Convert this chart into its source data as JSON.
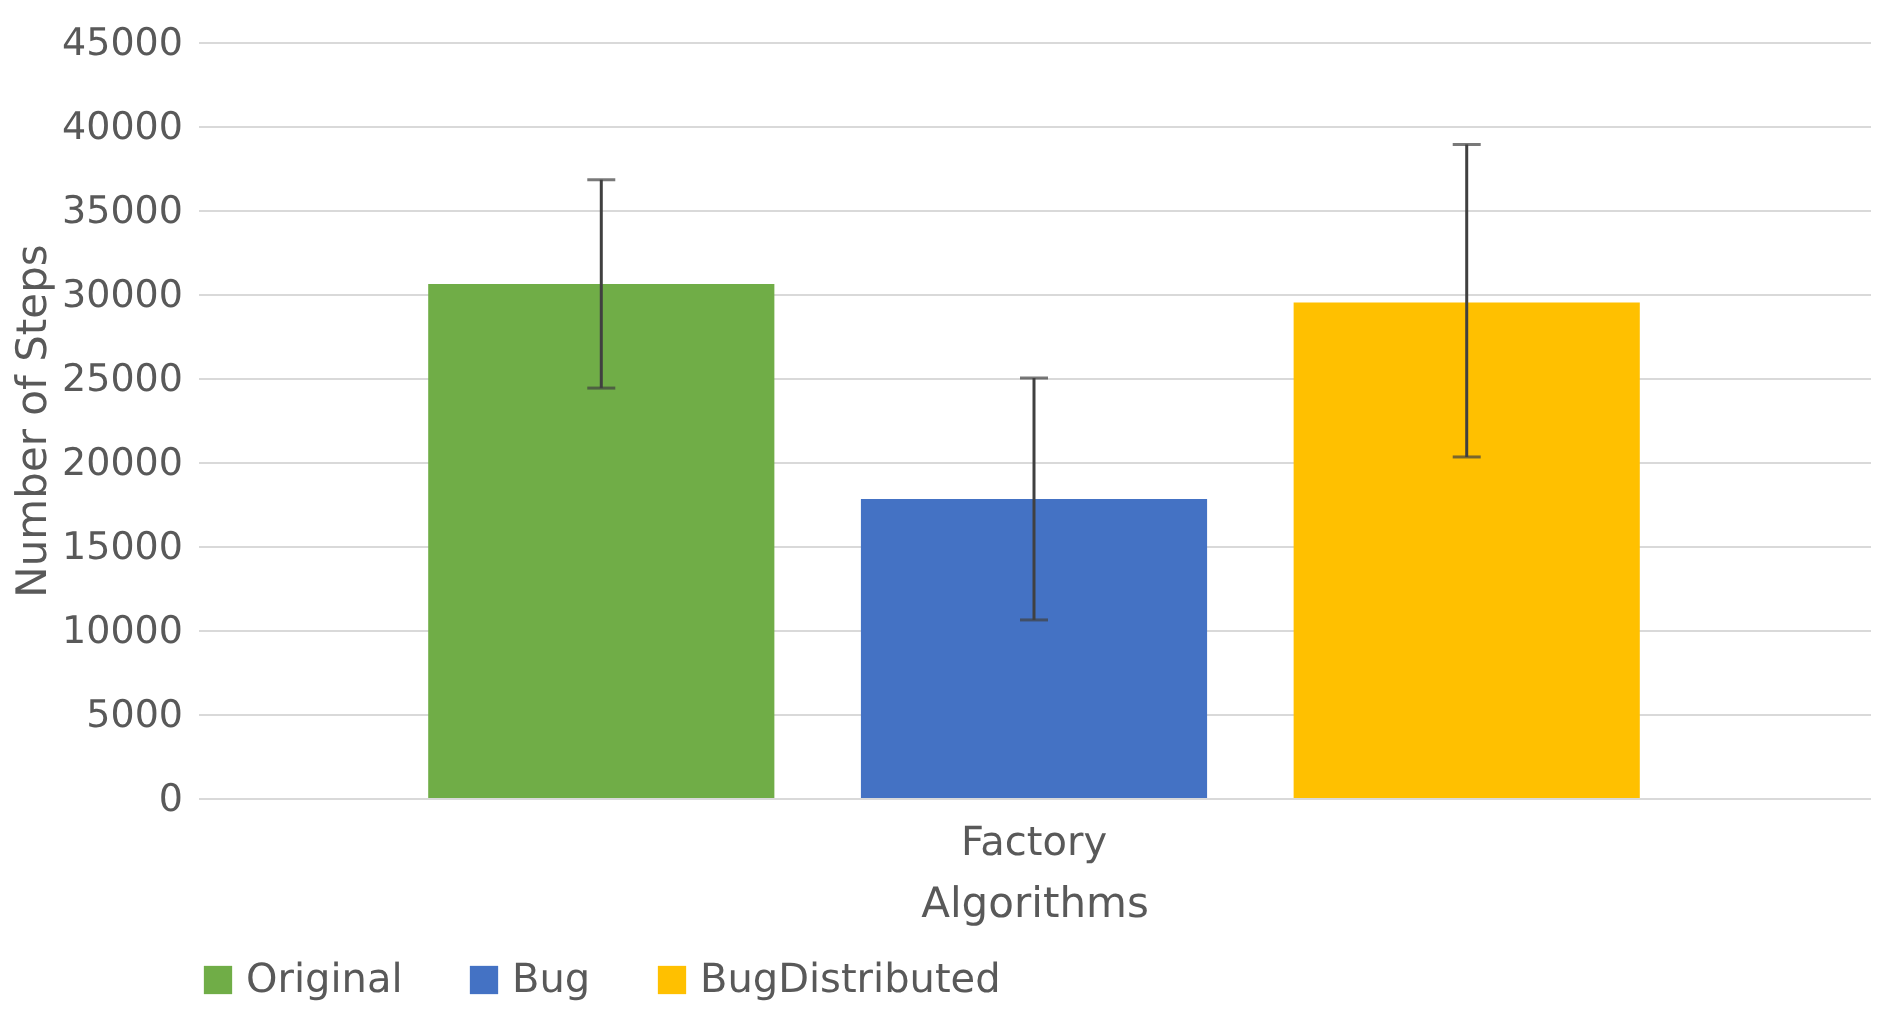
{
  "chart_data": {
    "type": "bar",
    "xlabel": "Algorithms",
    "ylabel": "Number of Steps",
    "categories": [
      "Factory"
    ],
    "series": [
      {
        "name": "Original",
        "color": "#70ad47",
        "values": [
          30600
        ],
        "errors": [
          [
            24400,
            36800
          ]
        ]
      },
      {
        "name": "Bug",
        "color": "#4472c4",
        "values": [
          17800
        ],
        "errors": [
          [
            10600,
            25000
          ]
        ]
      },
      {
        "name": "BugDistributed",
        "color": "#ffc000",
        "values": [
          29500
        ],
        "errors": [
          [
            20300,
            38900
          ]
        ]
      }
    ],
    "ylim": [
      0,
      45000
    ],
    "yticks": [
      0,
      5000,
      10000,
      15000,
      20000,
      25000,
      30000,
      35000,
      40000,
      45000
    ],
    "grid": "y",
    "legend": "bottom"
  }
}
